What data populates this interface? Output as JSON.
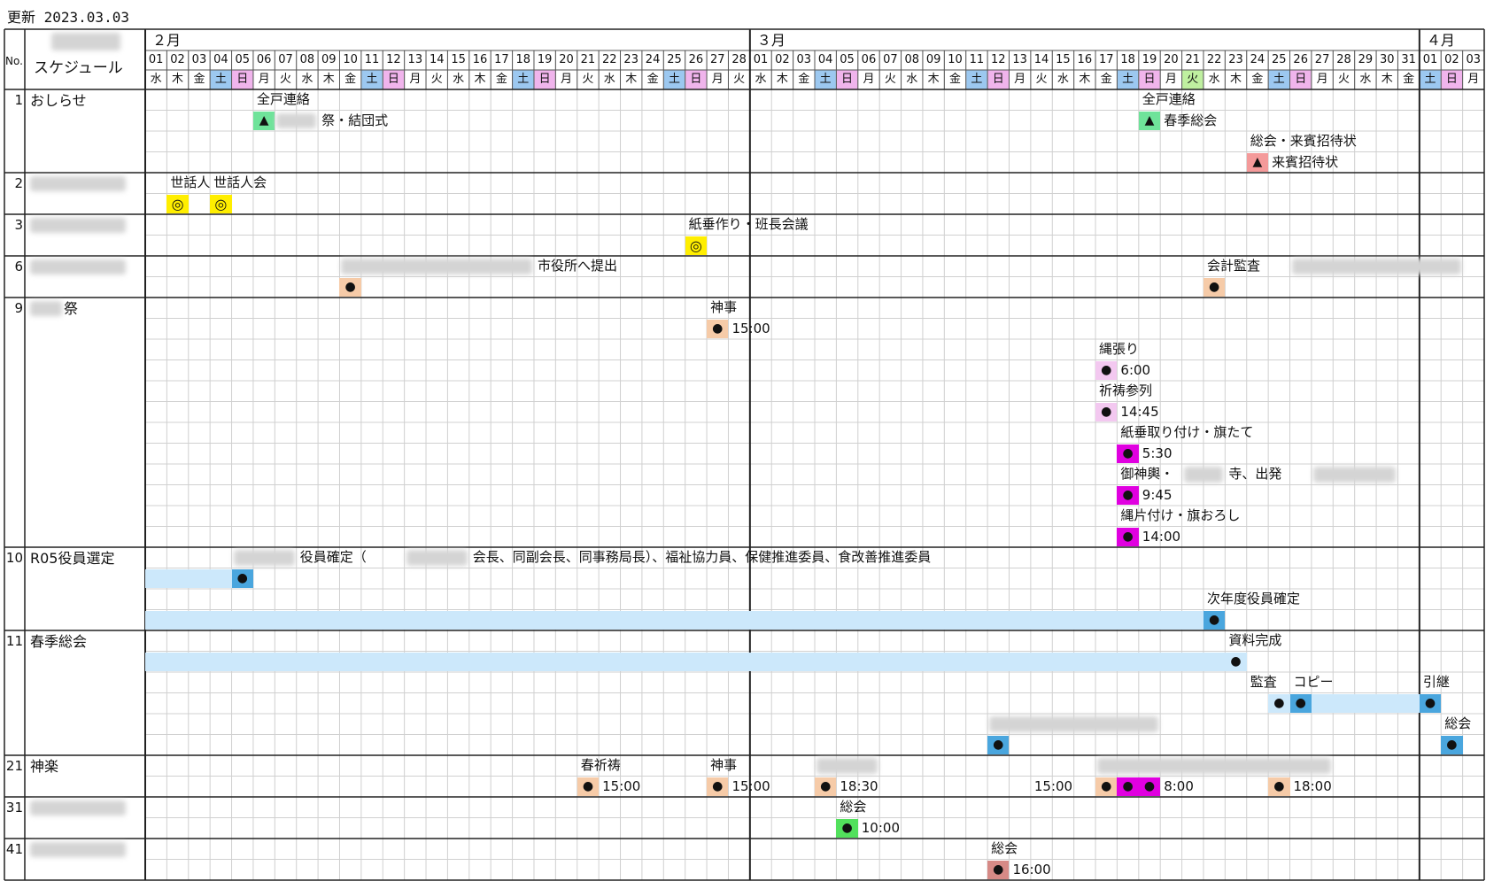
{
  "update_text": "更新 2023.03.03",
  "header": {
    "no_label": "No.",
    "title_label": "スケジュール",
    "months": [
      {
        "label": "２月",
        "start_day_index": 0
      },
      {
        "label": "３月",
        "start_day_index": 28
      },
      {
        "label": "４月",
        "start_day_index": 59
      }
    ],
    "days": [
      "01",
      "02",
      "03",
      "04",
      "05",
      "06",
      "07",
      "08",
      "09",
      "10",
      "11",
      "12",
      "13",
      "14",
      "15",
      "16",
      "17",
      "18",
      "19",
      "20",
      "21",
      "22",
      "23",
      "24",
      "25",
      "26",
      "27",
      "28",
      "01",
      "02",
      "03",
      "04",
      "05",
      "06",
      "07",
      "08",
      "09",
      "10",
      "11",
      "12",
      "13",
      "14",
      "15",
      "16",
      "17",
      "18",
      "19",
      "20",
      "21",
      "22",
      "23",
      "24",
      "25",
      "26",
      "27",
      "28",
      "29",
      "30",
      "31",
      "01",
      "02",
      "03"
    ],
    "weekdays": [
      "水",
      "木",
      "金",
      "土",
      "日",
      "月",
      "火",
      "水",
      "木",
      "金",
      "土",
      "日",
      "月",
      "火",
      "水",
      "木",
      "金",
      "土",
      "日",
      "月",
      "火",
      "水",
      "木",
      "金",
      "土",
      "日",
      "月",
      "火",
      "水",
      "木",
      "金",
      "土",
      "日",
      "月",
      "火",
      "水",
      "木",
      "金",
      "土",
      "日",
      "月",
      "火",
      "水",
      "木",
      "金",
      "土",
      "日",
      "月",
      "火",
      "水",
      "木",
      "金",
      "土",
      "日",
      "月",
      "火",
      "水",
      "木",
      "金",
      "土",
      "日",
      "月"
    ],
    "holiday_indices": [
      48
    ],
    "colors": {
      "saturday": "#9cc8f0",
      "sunday": "#f0b4ec",
      "holiday": "#bff0a0"
    }
  },
  "rows": [
    {
      "no": "1",
      "label": "おしらせ",
      "redacted": false,
      "lines": 4,
      "items": [
        {
          "text": "全戸連絡",
          "col": 5,
          "line": 0
        },
        {
          "mark": "▲",
          "col": 5,
          "line": 1,
          "color": "#6fe39a"
        },
        {
          "redact": true,
          "col": 6,
          "line": 1,
          "width": 2
        },
        {
          "text": "祭・結団式",
          "col": 8,
          "line": 1
        },
        {
          "text": "全戸連絡",
          "col": 46,
          "line": 0
        },
        {
          "mark": "▲",
          "col": 46,
          "line": 1,
          "color": "#6fe39a"
        },
        {
          "text": "春季総会",
          "col": 47,
          "line": 1
        },
        {
          "text": "総会・来賓招待状",
          "col": 51,
          "line": 2
        },
        {
          "mark": "▲",
          "col": 51,
          "line": 3,
          "color": "#f49a9a"
        },
        {
          "text": "来賓招待状",
          "col": 52,
          "line": 3
        }
      ]
    },
    {
      "no": "2",
      "label": "",
      "redacted": true,
      "lines": 2,
      "items": [
        {
          "text": "世話人",
          "col": 1,
          "line": 0
        },
        {
          "text": "世話人会",
          "col": 3,
          "line": 0
        },
        {
          "mark": "◎",
          "col": 1,
          "line": 1,
          "color": "#ffee00"
        },
        {
          "mark": "◎",
          "col": 3,
          "line": 1,
          "color": "#ffee00"
        }
      ]
    },
    {
      "no": "3",
      "label": "",
      "redacted": true,
      "lines": 2,
      "items": [
        {
          "text": "紙垂作り・班長会議",
          "col": 25,
          "line": 0
        },
        {
          "mark": "◎",
          "col": 25,
          "line": 1,
          "color": "#ffee00"
        }
      ]
    },
    {
      "no": "6",
      "label": "",
      "redacted": true,
      "lines": 2,
      "items": [
        {
          "redact": true,
          "col": 9,
          "line": 0,
          "width": 9
        },
        {
          "text": "市役所へ提出",
          "col": 18,
          "line": 0
        },
        {
          "mark": "●",
          "col": 9,
          "line": 1,
          "color": "#f6cba8"
        },
        {
          "text": "会計監査",
          "col": 49,
          "line": 0
        },
        {
          "redact": true,
          "col": 53,
          "line": 0,
          "width": 8
        },
        {
          "mark": "●",
          "col": 49,
          "line": 1,
          "color": "#f6cba8"
        }
      ]
    },
    {
      "no": "9",
      "label": "祭",
      "redacted": "prefix",
      "lines": 12,
      "items": [
        {
          "text": "神事",
          "col": 26,
          "line": 0
        },
        {
          "mark": "●",
          "col": 26,
          "line": 1,
          "color": "#f6cba8"
        },
        {
          "text": "15:00",
          "col": 27,
          "line": 1
        },
        {
          "text": "縄張り",
          "col": 44,
          "line": 2
        },
        {
          "mark": "●",
          "col": 44,
          "line": 3,
          "color": "#f3c8f0"
        },
        {
          "text": "6:00",
          "col": 45,
          "line": 3
        },
        {
          "text": "祈祷参列",
          "col": 44,
          "line": 4
        },
        {
          "mark": "●",
          "col": 44,
          "line": 5,
          "color": "#f3c8f0"
        },
        {
          "text": "14:45",
          "col": 45,
          "line": 5
        },
        {
          "text": "紙垂取り付け・旗たて",
          "col": 45,
          "line": 6
        },
        {
          "mark": "●",
          "col": 45,
          "line": 7,
          "color": "#e000e0"
        },
        {
          "text": "5:30",
          "col": 46,
          "line": 7
        },
        {
          "text": "御神輿・",
          "col": 45,
          "line": 8
        },
        {
          "redact": true,
          "col": 48,
          "line": 8,
          "width": 2
        },
        {
          "text": "寺、出発",
          "col": 50,
          "line": 8
        },
        {
          "redact": true,
          "col": 54,
          "line": 8,
          "width": 4
        },
        {
          "mark": "●",
          "col": 45,
          "line": 9,
          "color": "#e000e0"
        },
        {
          "text": "9:45",
          "col": 46,
          "line": 9
        },
        {
          "text": "縄片付け・旗おろし",
          "col": 45,
          "line": 10
        },
        {
          "mark": "●",
          "col": 45,
          "line": 11,
          "color": "#e000e0"
        },
        {
          "text": "14:00",
          "col": 46,
          "line": 11
        }
      ]
    },
    {
      "no": "10",
      "label": "R05役員選定",
      "redacted": false,
      "lines": 4,
      "bands": [
        {
          "line": 1,
          "from": 0,
          "to": 4
        },
        {
          "line": 3,
          "from": 0,
          "to": 49
        }
      ],
      "items": [
        {
          "redact": true,
          "col": 4,
          "line": 0,
          "width": 3
        },
        {
          "text": "役員確定（",
          "col": 7,
          "line": 0
        },
        {
          "redact": true,
          "col": 12,
          "line": 0,
          "width": 3
        },
        {
          "text": "会長、同副会長、同事務局長）、福祉協力員、保健推進委員、食改善推進委員",
          "col": 15,
          "line": 0
        },
        {
          "mark": "●",
          "col": 4,
          "line": 1,
          "color": "#4aa6de"
        },
        {
          "text": "次年度役員確定",
          "col": 49,
          "line": 2
        },
        {
          "mark": "●",
          "col": 49,
          "line": 3,
          "color": "#4aa6de"
        }
      ]
    },
    {
      "no": "11",
      "label": "春季総会",
      "redacted": false,
      "lines": 6,
      "bands": [
        {
          "line": 1,
          "from": 0,
          "to": 50
        },
        {
          "line": 3,
          "from": 52,
          "to": 59
        }
      ],
      "items": [
        {
          "text": "資料完成",
          "col": 50,
          "line": 0
        },
        {
          "mark": "●",
          "col": 50,
          "line": 1,
          "color": "#cce8fb"
        },
        {
          "text": "監査",
          "col": 51,
          "line": 2
        },
        {
          "text": "コピー",
          "col": 53,
          "line": 2
        },
        {
          "text": "引継",
          "col": 59,
          "line": 2
        },
        {
          "mark": "●",
          "col": 52,
          "line": 3,
          "color": "#cce8fb"
        },
        {
          "mark": "●",
          "col": 53,
          "line": 3,
          "color": "#4aa6de"
        },
        {
          "mark": "●",
          "col": 59,
          "line": 3,
          "color": "#4aa6de"
        },
        {
          "redact": true,
          "col": 39,
          "line": 4,
          "width": 8
        },
        {
          "text": "総会",
          "col": 60,
          "line": 4
        },
        {
          "mark": "●",
          "col": 39,
          "line": 5,
          "color": "#4aa6de"
        },
        {
          "mark": "●",
          "col": 60,
          "line": 5,
          "color": "#4aa6de"
        }
      ]
    },
    {
      "no": "21",
      "label": "神楽",
      "redacted": false,
      "lines": 2,
      "items": [
        {
          "text": "春祈祷",
          "col": 20,
          "line": 0
        },
        {
          "mark": "●",
          "col": 20,
          "line": 1,
          "color": "#f6cba8"
        },
        {
          "text": "15:00",
          "col": 21,
          "line": 1
        },
        {
          "text": "神事",
          "col": 26,
          "line": 0
        },
        {
          "mark": "●",
          "col": 26,
          "line": 1,
          "color": "#f6cba8"
        },
        {
          "text": "15:00",
          "col": 27,
          "line": 1
        },
        {
          "redact": true,
          "col": 31,
          "line": 0,
          "width": 3
        },
        {
          "mark": "●",
          "col": 31,
          "line": 1,
          "color": "#f6cba8"
        },
        {
          "text": "18:30",
          "col": 32,
          "line": 1
        },
        {
          "text": "15:00",
          "col": 41,
          "line": 1
        },
        {
          "redact": true,
          "col": 44,
          "line": 0,
          "width": 11
        },
        {
          "mark": "●",
          "col": 44,
          "line": 1,
          "color": "#f6cba8"
        },
        {
          "mark": "●",
          "col": 45,
          "line": 1,
          "color": "#e000e0"
        },
        {
          "mark": "●",
          "col": 46,
          "line": 1,
          "color": "#e000e0"
        },
        {
          "text": "8:00",
          "col": 47,
          "line": 1
        },
        {
          "mark": "●",
          "col": 52,
          "line": 1,
          "color": "#f6cba8"
        },
        {
          "text": "18:00",
          "col": 53,
          "line": 1
        }
      ]
    },
    {
      "no": "31",
      "label": "",
      "redacted": true,
      "lines": 2,
      "items": [
        {
          "text": "総会",
          "col": 32,
          "line": 0
        },
        {
          "mark": "●",
          "col": 32,
          "line": 1,
          "color": "#52e05c"
        },
        {
          "text": "10:00",
          "col": 33,
          "line": 1
        }
      ]
    },
    {
      "no": "41",
      "label": "",
      "redacted": true,
      "lines": 2,
      "items": [
        {
          "text": "総会",
          "col": 39,
          "line": 0
        },
        {
          "mark": "●",
          "col": 39,
          "line": 1,
          "color": "#d68a86"
        },
        {
          "text": "16:00",
          "col": 40,
          "line": 1
        }
      ]
    }
  ]
}
